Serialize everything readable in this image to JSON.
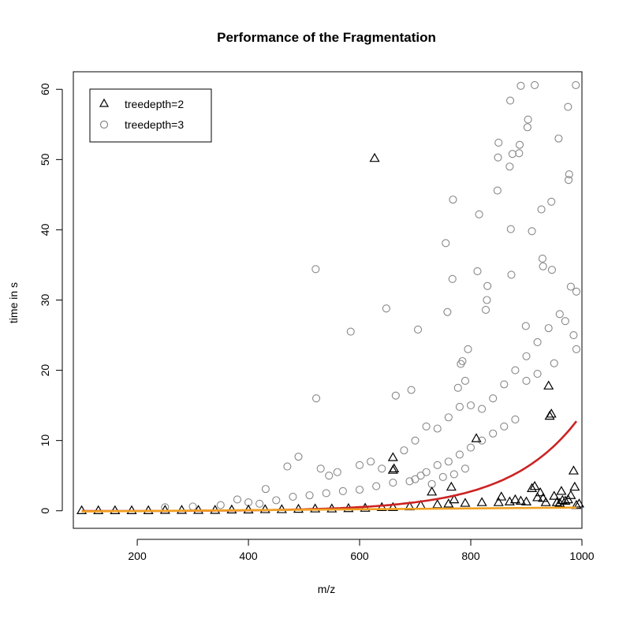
{
  "chart_data": {
    "type": "scatter",
    "title": "Performance of the Fragmentation",
    "xlabel": "m/z",
    "ylabel": "time in s",
    "xlim": [
      85,
      1000
    ],
    "ylim": [
      -2.5,
      62.5
    ],
    "x_ticks": [
      200,
      400,
      600,
      800,
      1000
    ],
    "y_ticks": [
      0,
      10,
      20,
      30,
      40,
      50,
      60
    ],
    "x_tick_labels": [
      "200",
      "400",
      "600",
      "800",
      "1000"
    ],
    "y_tick_labels": [
      "0",
      "10",
      "20",
      "30",
      "40",
      "50",
      "60"
    ],
    "grid": false,
    "legend_position": "top-left",
    "legend": [
      {
        "label": "treedepth=2",
        "marker": "triangle",
        "color": "#000000"
      },
      {
        "label": "treedepth=3",
        "marker": "circle",
        "color": "#888888"
      }
    ],
    "series": [
      {
        "name": "treedepth=2",
        "marker": "triangle",
        "color": "#000000",
        "points": [
          [
            100,
            0.05
          ],
          [
            130,
            0.05
          ],
          [
            160,
            0.05
          ],
          [
            190,
            0.05
          ],
          [
            220,
            0.05
          ],
          [
            250,
            0.1
          ],
          [
            280,
            0.1
          ],
          [
            310,
            0.1
          ],
          [
            340,
            0.1
          ],
          [
            370,
            0.15
          ],
          [
            400,
            0.15
          ],
          [
            430,
            0.2
          ],
          [
            460,
            0.2
          ],
          [
            490,
            0.25
          ],
          [
            520,
            0.3
          ],
          [
            550,
            0.3
          ],
          [
            580,
            0.35
          ],
          [
            610,
            0.4
          ],
          [
            640,
            0.5
          ],
          [
            660,
            0.5
          ],
          [
            627,
            50.2
          ],
          [
            660,
            7.6
          ],
          [
            660,
            5.8
          ],
          [
            662,
            6.0
          ],
          [
            730,
            2.7
          ],
          [
            765,
            3.4
          ],
          [
            770,
            1.6
          ],
          [
            810,
            10.3
          ],
          [
            855,
            2.0
          ],
          [
            880,
            1.6
          ],
          [
            910,
            3.2
          ],
          [
            915,
            3.5
          ],
          [
            920,
            1.9
          ],
          [
            925,
            2.6
          ],
          [
            930,
            1.8
          ],
          [
            940,
            17.8
          ],
          [
            942,
            13.5
          ],
          [
            945,
            13.8
          ],
          [
            950,
            2.1
          ],
          [
            955,
            1.2
          ],
          [
            963,
            2.8
          ],
          [
            970,
            1.4
          ],
          [
            975,
            1.6
          ],
          [
            980,
            2.2
          ],
          [
            985,
            5.7
          ],
          [
            987,
            3.4
          ],
          [
            990,
            0.8
          ],
          [
            690,
            0.6
          ],
          [
            710,
            0.8
          ],
          [
            740,
            0.9
          ],
          [
            760,
            1.0
          ],
          [
            790,
            1.1
          ],
          [
            820,
            1.2
          ],
          [
            850,
            1.2
          ],
          [
            870,
            1.3
          ],
          [
            890,
            1.4
          ],
          [
            900,
            1.3
          ],
          [
            935,
            1.2
          ],
          [
            960,
            1.1
          ],
          [
            965,
            1.5
          ],
          [
            995,
            1.0
          ]
        ]
      },
      {
        "name": "treedepth=3",
        "marker": "circle",
        "color": "#888888",
        "points": [
          [
            521,
            34.4
          ],
          [
            522,
            16.0
          ],
          [
            584,
            25.5
          ],
          [
            648,
            28.8
          ],
          [
            665,
            16.4
          ],
          [
            693,
            17.2
          ],
          [
            705,
            25.8
          ],
          [
            755,
            38.1
          ],
          [
            758,
            28.3
          ],
          [
            767,
            33.0
          ],
          [
            768,
            44.3
          ],
          [
            777,
            17.5
          ],
          [
            782,
            20.9
          ],
          [
            785,
            21.3
          ],
          [
            790,
            18.5
          ],
          [
            795,
            23.0
          ],
          [
            812,
            34.1
          ],
          [
            815,
            42.2
          ],
          [
            827,
            28.6
          ],
          [
            829,
            30.0
          ],
          [
            830,
            32.0
          ],
          [
            848,
            45.6
          ],
          [
            849,
            50.3
          ],
          [
            850,
            52.4
          ],
          [
            870,
            49.0
          ],
          [
            871,
            58.4
          ],
          [
            872,
            40.1
          ],
          [
            873,
            33.6
          ],
          [
            875,
            50.8
          ],
          [
            887,
            50.9
          ],
          [
            888,
            52.1
          ],
          [
            890,
            60.5
          ],
          [
            899,
            26.3
          ],
          [
            902,
            54.6
          ],
          [
            903,
            55.7
          ],
          [
            910,
            39.8
          ],
          [
            915,
            60.6
          ],
          [
            927,
            42.9
          ],
          [
            929,
            35.9
          ],
          [
            930,
            34.8
          ],
          [
            945,
            44.0
          ],
          [
            946,
            34.3
          ],
          [
            958,
            53.0
          ],
          [
            975,
            57.5
          ],
          [
            976,
            47.1
          ],
          [
            977,
            47.9
          ],
          [
            980,
            31.9
          ],
          [
            989,
            60.6
          ],
          [
            990,
            31.2
          ],
          [
            431,
            3.1
          ],
          [
            470,
            6.3
          ],
          [
            490,
            7.7
          ],
          [
            530,
            6.0
          ],
          [
            545,
            5.0
          ],
          [
            560,
            5.5
          ],
          [
            600,
            6.5
          ],
          [
            620,
            7.0
          ],
          [
            640,
            6.0
          ],
          [
            680,
            8.6
          ],
          [
            700,
            10.0
          ],
          [
            720,
            12.0
          ],
          [
            740,
            11.7
          ],
          [
            760,
            13.3
          ],
          [
            780,
            14.8
          ],
          [
            800,
            15.0
          ],
          [
            820,
            14.5
          ],
          [
            840,
            16.0
          ],
          [
            860,
            18.0
          ],
          [
            880,
            20.0
          ],
          [
            900,
            22.0
          ],
          [
            920,
            24.0
          ],
          [
            940,
            26.0
          ],
          [
            960,
            28.0
          ],
          [
            970,
            27.0
          ],
          [
            985,
            25.0
          ],
          [
            990,
            23.0
          ],
          [
            900,
            18.5
          ],
          [
            920,
            19.5
          ],
          [
            950,
            21.0
          ],
          [
            860,
            12.0
          ],
          [
            880,
            13.0
          ],
          [
            840,
            11.0
          ],
          [
            820,
            10.0
          ],
          [
            800,
            9.0
          ],
          [
            780,
            8.0
          ],
          [
            760,
            7.0
          ],
          [
            740,
            6.5
          ],
          [
            720,
            5.5
          ],
          [
            700,
            4.5
          ],
          [
            250,
            0.5
          ],
          [
            300,
            0.6
          ],
          [
            350,
            0.8
          ],
          [
            380,
            1.6
          ],
          [
            400,
            1.2
          ],
          [
            420,
            1.0
          ],
          [
            450,
            1.5
          ],
          [
            480,
            2.0
          ],
          [
            510,
            2.2
          ],
          [
            540,
            2.5
          ],
          [
            570,
            2.8
          ],
          [
            600,
            3.0
          ],
          [
            630,
            3.5
          ],
          [
            660,
            4.0
          ],
          [
            690,
            4.2
          ],
          [
            710,
            5.0
          ],
          [
            730,
            3.8
          ],
          [
            750,
            4.8
          ],
          [
            770,
            5.2
          ],
          [
            790,
            6.0
          ]
        ]
      }
    ],
    "fit_lines": [
      {
        "series": "treedepth=3",
        "color": "#cc2222",
        "type": "exponential",
        "a": 0.00465,
        "b": 0.008
      },
      {
        "series": "treedepth=2",
        "color": "#f0a020",
        "type": "linear",
        "points": [
          [
            100,
            -0.1
          ],
          [
            990,
            0.45
          ]
        ]
      }
    ]
  }
}
